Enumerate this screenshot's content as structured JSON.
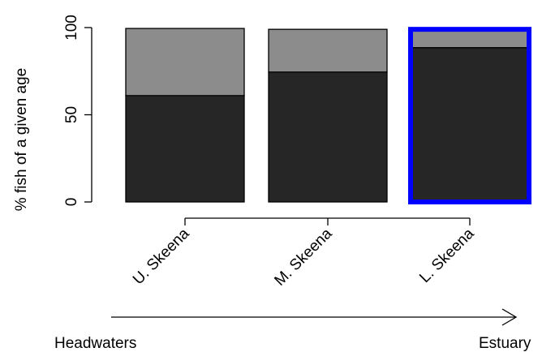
{
  "chart_data": {
    "type": "bar",
    "stacked": true,
    "ylabel": "% fish of a given age",
    "ylim": [
      0,
      100
    ],
    "yticks": [
      0,
      50,
      100
    ],
    "categories": [
      "U. Skeena",
      "M. Skeena",
      "L. Skeena"
    ],
    "highlighted_category": "L. Skeena",
    "series": [
      {
        "values": [
          61,
          74.5,
          88.5
        ],
        "color": "#262626"
      },
      {
        "values": [
          38.5,
          24.5,
          10.5
        ],
        "color": "#8c8c8c"
      }
    ],
    "highlight_color": "#0000ff",
    "gradient_arrow": {
      "start_label": "Headwaters",
      "end_label": "Estuary"
    }
  }
}
